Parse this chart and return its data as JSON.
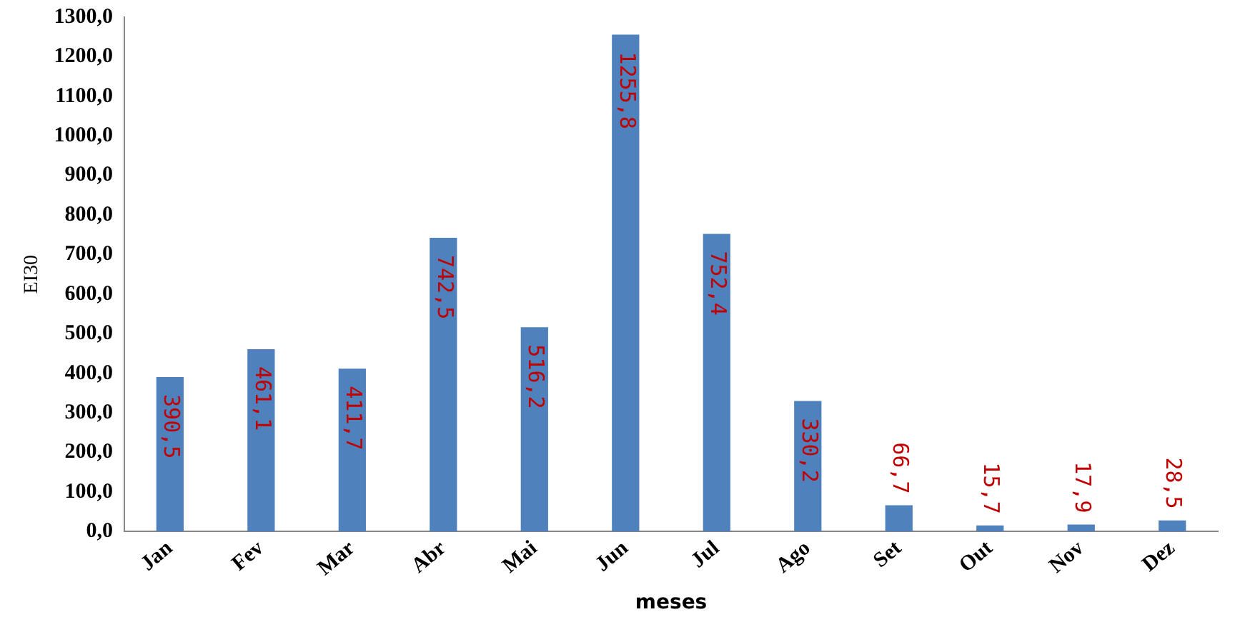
{
  "chart_data": {
    "type": "bar",
    "xlabel": "meses",
    "ylabel": "EI30",
    "categories": [
      "Jan",
      "Fev",
      "Mar",
      "Abr",
      "Mai",
      "Jun",
      "Jul",
      "Ago",
      "Set",
      "Out",
      "Nov",
      "Dez"
    ],
    "values": [
      390.5,
      461.1,
      411.7,
      742.5,
      516.2,
      1255.8,
      752.4,
      330.2,
      66.7,
      15.7,
      17.9,
      28.5
    ],
    "value_labels": [
      "390,5",
      "461,1",
      "411,7",
      "742,5",
      "516,2",
      "1255,8",
      "752,4",
      "330,2",
      "66,7",
      "15,7",
      "17,9",
      "28,5"
    ],
    "color": "#4f81bd",
    "ylim": [
      0,
      1300
    ],
    "yticks": [
      {
        "value": 0,
        "label": "0,0"
      },
      {
        "value": 100,
        "label": "100,0"
      },
      {
        "value": 200,
        "label": "200,0"
      },
      {
        "value": 300,
        "label": "300,0"
      },
      {
        "value": 400,
        "label": "400,0"
      },
      {
        "value": 500,
        "label": "500,0"
      },
      {
        "value": 600,
        "label": "600,0"
      },
      {
        "value": 700,
        "label": "700,0"
      },
      {
        "value": 800,
        "label": "800,0"
      },
      {
        "value": 900,
        "label": "900,0"
      },
      {
        "value": 1000,
        "label": "1000,0"
      },
      {
        "value": 1100,
        "label": "1100,0"
      },
      {
        "value": 1200,
        "label": "1200,0"
      },
      {
        "value": 1300,
        "label": "1300,0"
      }
    ],
    "grid": false,
    "legend": false
  }
}
